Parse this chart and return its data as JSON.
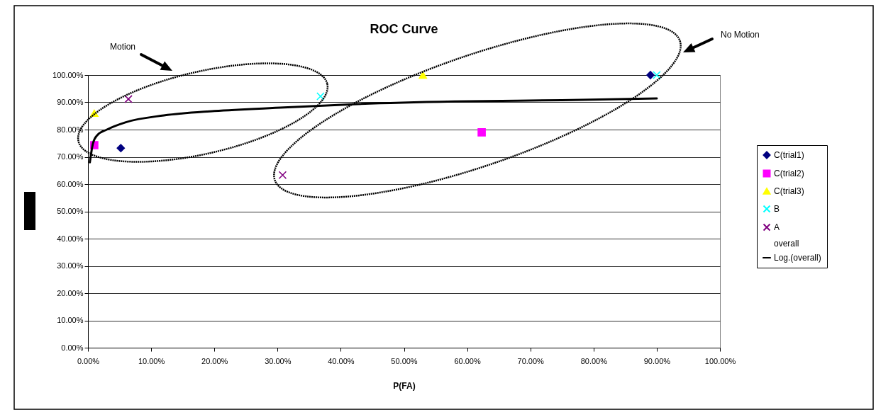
{
  "chart_data": {
    "type": "scatter",
    "title": "ROC Curve",
    "xlabel": "P(FA)",
    "xlim": [
      0,
      1
    ],
    "ylim": [
      0,
      1
    ],
    "xticks": [
      {
        "value": 0,
        "label": "0.00%"
      },
      {
        "value": 0.1,
        "label": "10.00%"
      },
      {
        "value": 0.2,
        "label": "20.00%"
      },
      {
        "value": 0.3,
        "label": "30.00%"
      },
      {
        "value": 0.4,
        "label": "40.00%"
      },
      {
        "value": 0.5,
        "label": "50.00%"
      },
      {
        "value": 0.6,
        "label": "60.00%"
      },
      {
        "value": 0.7,
        "label": "70.00%"
      },
      {
        "value": 0.8,
        "label": "80.00%"
      },
      {
        "value": 0.9,
        "label": "90.00%"
      },
      {
        "value": 1,
        "label": "100.00%"
      }
    ],
    "yticks": [
      {
        "value": 0,
        "label": "0.00%"
      },
      {
        "value": 0.1,
        "label": "10.00%"
      },
      {
        "value": 0.2,
        "label": "20.00%"
      },
      {
        "value": 0.3,
        "label": "30.00%"
      },
      {
        "value": 0.4,
        "label": "40.00%"
      },
      {
        "value": 0.5,
        "label": "50.00%"
      },
      {
        "value": 0.6,
        "label": "60.00%"
      },
      {
        "value": 0.7,
        "label": "70.00%"
      },
      {
        "value": 0.8,
        "label": "80.00%"
      },
      {
        "value": 0.9,
        "label": "90.00%"
      },
      {
        "value": 1,
        "label": "100.00%"
      }
    ],
    "grid": "y",
    "legend": "right",
    "annotations": [
      "Motion",
      "No Motion"
    ],
    "series": [
      {
        "name": "C(trial1)",
        "type": "scatter",
        "marker": "diamond",
        "color": "#000080",
        "x": [
          0.052,
          0.89
        ],
        "values": [
          0.732,
          1.0
        ]
      },
      {
        "name": "C(trial2)",
        "type": "scatter",
        "marker": "square",
        "color": "#ff00ff",
        "x": [
          0.01,
          0.623
        ],
        "values": [
          0.743,
          0.79
        ]
      },
      {
        "name": "C(trial3)",
        "type": "scatter",
        "marker": "triangle",
        "color": "#ffff00",
        "x": [
          0.01,
          0.53
        ],
        "values": [
          0.86,
          1.0
        ]
      },
      {
        "name": "B",
        "type": "scatter",
        "marker": "cross",
        "color": "#00ffff",
        "x": [
          0.368,
          0.9
        ],
        "values": [
          0.922,
          1.0
        ]
      },
      {
        "name": "A",
        "type": "scatter",
        "marker": "cross",
        "color": "#800080",
        "x": [
          0.064,
          0.308
        ],
        "values": [
          0.912,
          0.633
        ]
      },
      {
        "name": "overall",
        "type": "scatter",
        "marker": "none"
      },
      {
        "name": "Log.(overall)",
        "type": "line",
        "marker": "none",
        "line_style": "solid",
        "color": "#000000",
        "x": [
          0.003,
          0.008,
          0.015,
          0.03,
          0.06,
          0.12,
          0.2,
          0.31,
          0.42,
          0.58,
          0.75,
          0.9
        ],
        "values": [
          0.68,
          0.75,
          0.78,
          0.8,
          0.827,
          0.852,
          0.868,
          0.881,
          0.893,
          0.903,
          0.908,
          0.914
        ]
      }
    ]
  }
}
